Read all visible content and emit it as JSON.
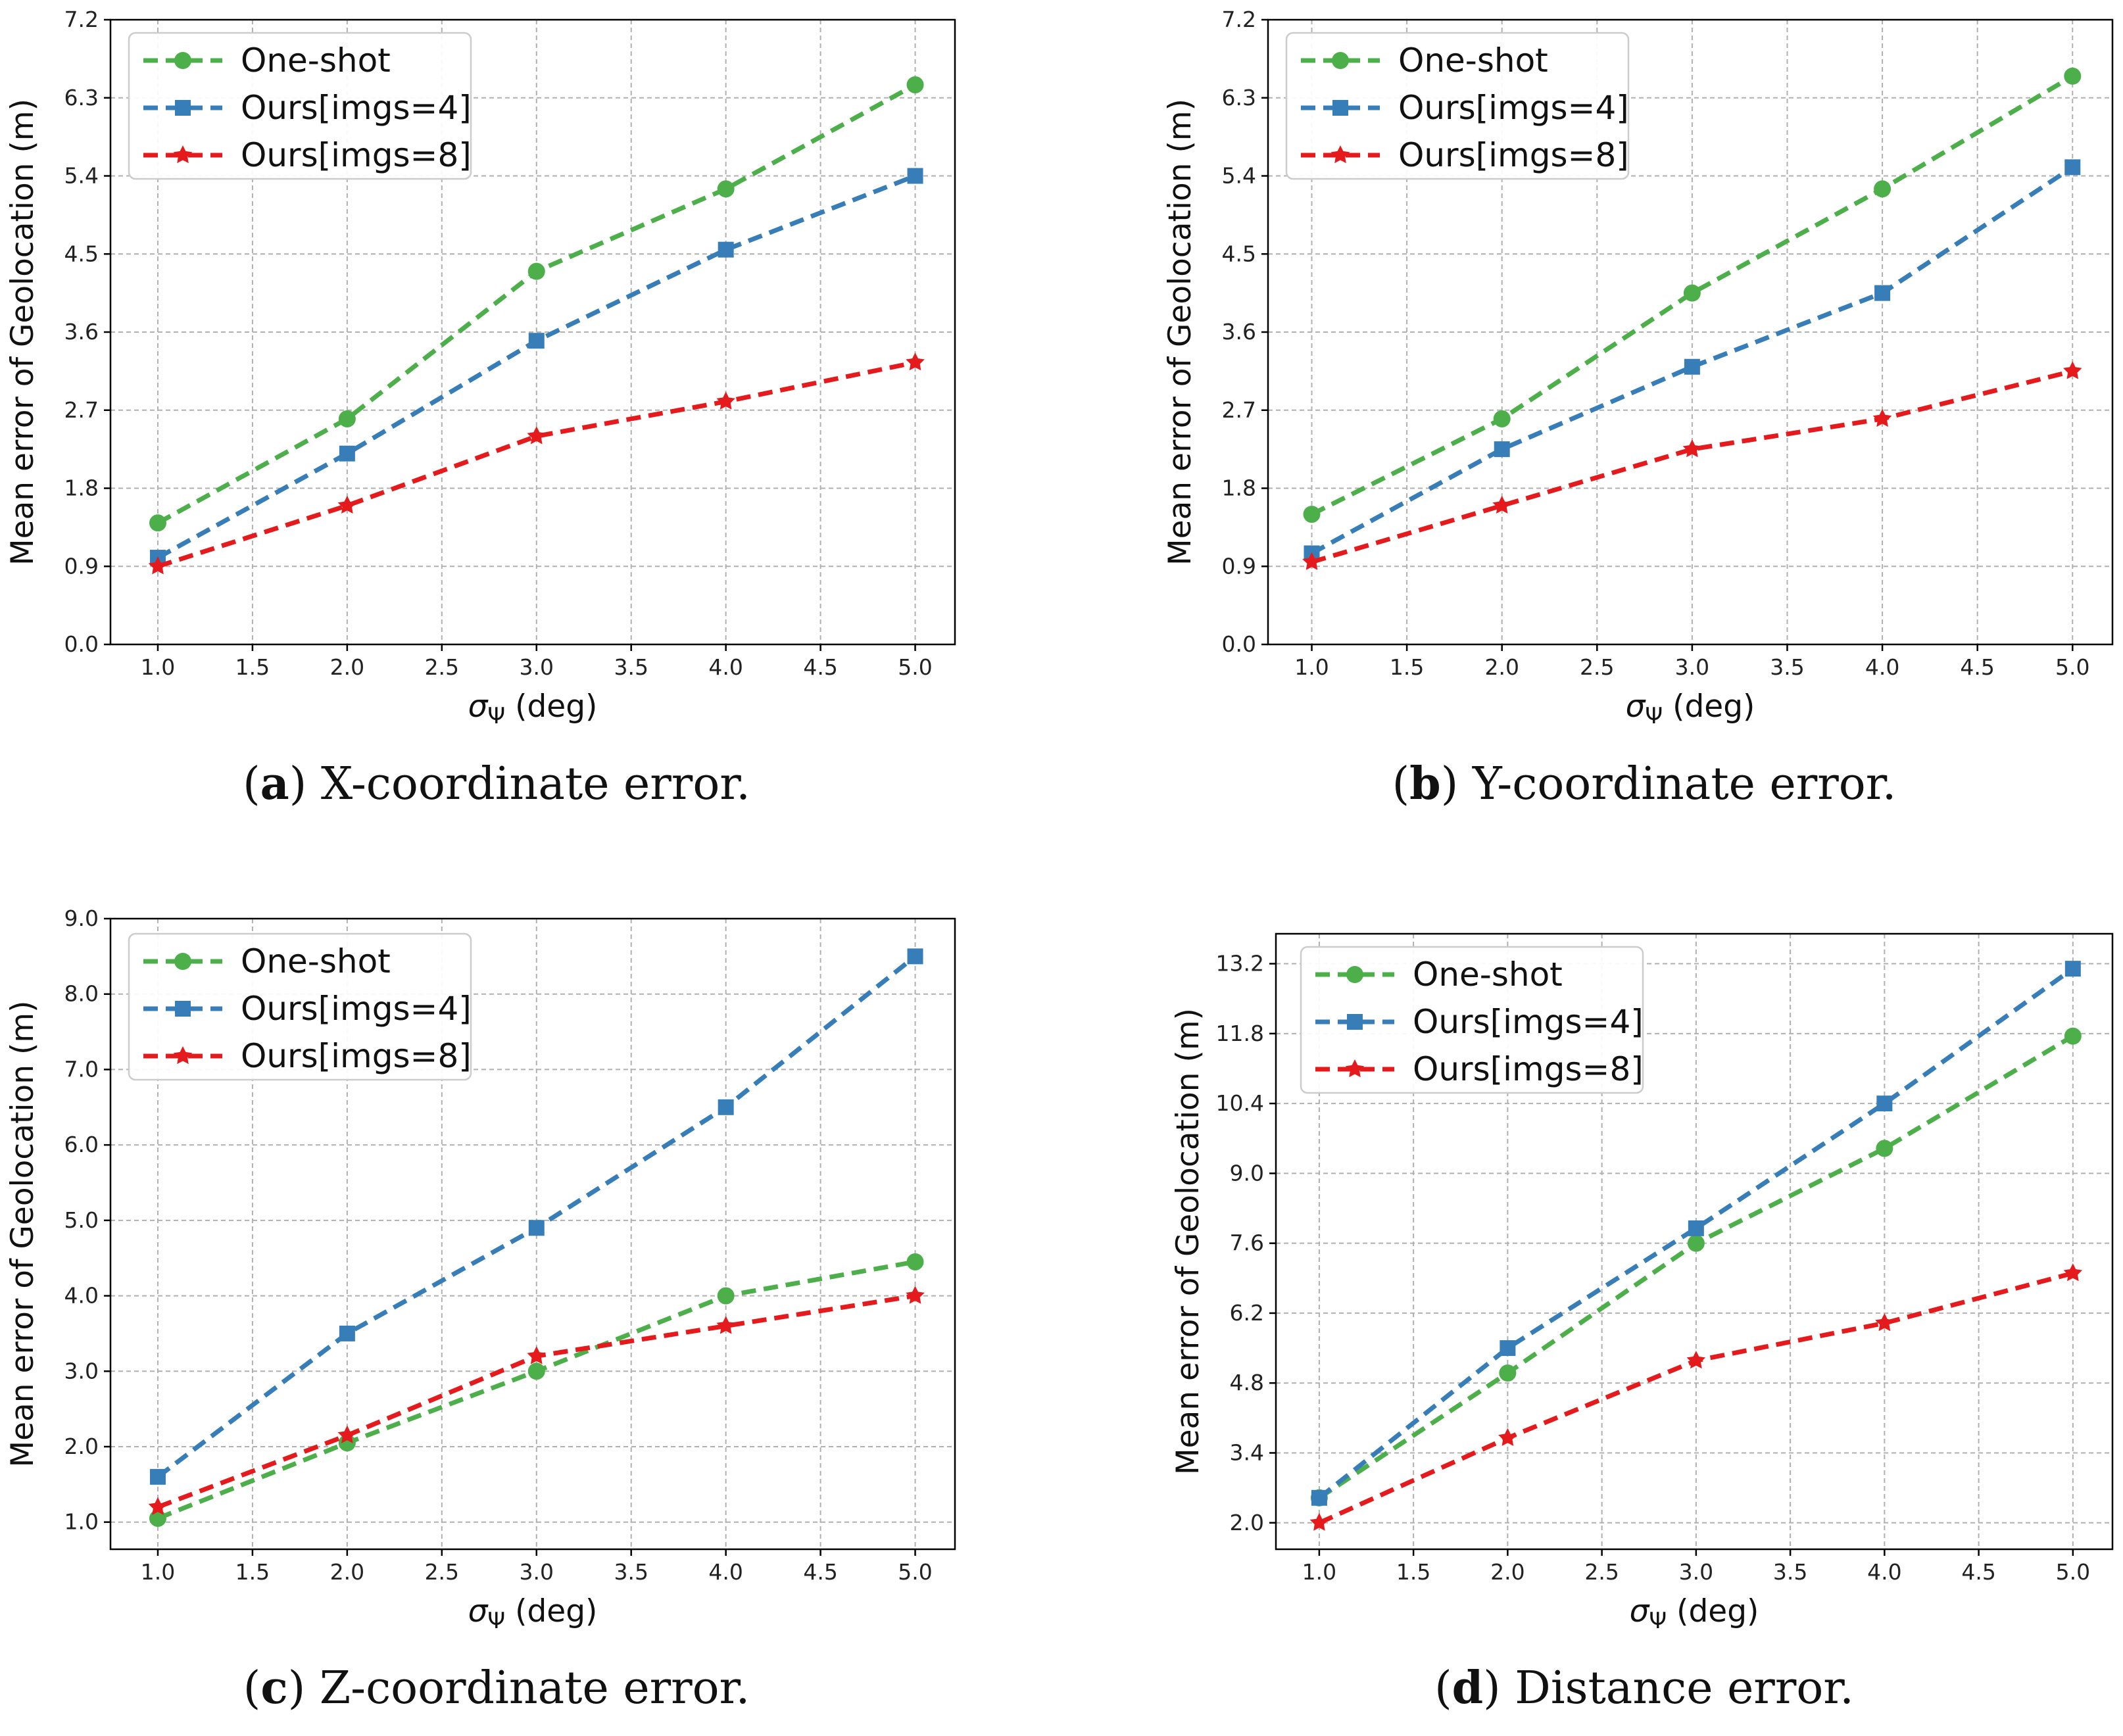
{
  "figure": {
    "series_styles": [
      {
        "name": "One-shot",
        "color": "#4daf4a",
        "marker": "circle"
      },
      {
        "name": "Ours[imgs=4]",
        "color": "#377eb8",
        "marker": "square"
      },
      {
        "name": "Ours[imgs=8]",
        "color": "#e41a1c",
        "marker": "triangle"
      }
    ]
  },
  "chart_data": [
    {
      "id": "a",
      "type": "line",
      "caption_letter": "a",
      "caption_text": "X-coordinate error.",
      "xlabel_symbol": "σ",
      "xlabel_sub": "Ψ",
      "xlabel_unit": "(deg)",
      "ylabel": "Mean error of Geolocation (m)",
      "xlim": [
        0.75,
        5.21
      ],
      "ylim": [
        0,
        7.2
      ],
      "xticks": [
        "1.0",
        "1.5",
        "2.0",
        "2.5",
        "3.0",
        "3.5",
        "4.0",
        "4.5",
        "5.0"
      ],
      "yticks": [
        "0.0",
        "0.9",
        "1.8",
        "2.7",
        "3.6",
        "4.5",
        "5.4",
        "6.3",
        "7.2"
      ],
      "legend_position": "top-left",
      "x": [
        1,
        2,
        3,
        4,
        5
      ],
      "series": [
        {
          "name": "One-shot",
          "values": [
            1.4,
            2.6,
            4.3,
            5.25,
            6.45
          ]
        },
        {
          "name": "Ours[imgs=4]",
          "values": [
            1.0,
            2.2,
            3.5,
            4.55,
            5.4
          ]
        },
        {
          "name": "Ours[imgs=8]",
          "values": [
            0.9,
            1.6,
            2.4,
            2.8,
            3.25
          ]
        }
      ]
    },
    {
      "id": "b",
      "type": "line",
      "caption_letter": "b",
      "caption_text": "Y-coordinate error.",
      "xlabel_symbol": "σ",
      "xlabel_sub": "Ψ",
      "xlabel_unit": "(deg)",
      "ylabel": "Mean error of Geolocation (m)",
      "xlim": [
        0.77,
        5.21
      ],
      "ylim": [
        0,
        7.2
      ],
      "xticks": [
        "1.0",
        "1.5",
        "2.0",
        "2.5",
        "3.0",
        "3.5",
        "4.0",
        "4.5",
        "5.0"
      ],
      "yticks": [
        "0.0",
        "0.9",
        "1.8",
        "2.7",
        "3.6",
        "4.5",
        "5.4",
        "6.3",
        "7.2"
      ],
      "legend_position": "top-left",
      "x": [
        1,
        2,
        3,
        4,
        5
      ],
      "series": [
        {
          "name": "One-shot",
          "values": [
            1.5,
            2.6,
            4.05,
            5.25,
            6.55
          ]
        },
        {
          "name": "Ours[imgs=4]",
          "values": [
            1.05,
            2.25,
            3.2,
            4.05,
            5.5
          ]
        },
        {
          "name": "Ours[imgs=8]",
          "values": [
            0.95,
            1.6,
            2.25,
            2.6,
            3.15
          ]
        }
      ]
    },
    {
      "id": "c",
      "type": "line",
      "caption_letter": "c",
      "caption_text": "Z-coordinate error.",
      "xlabel_symbol": "σ",
      "xlabel_sub": "Ψ",
      "xlabel_unit": "(deg)",
      "ylabel": "Mean error of Geolocation (m)",
      "xlim": [
        0.75,
        5.21
      ],
      "ylim": [
        0.64,
        9.0
      ],
      "xticks": [
        "1.0",
        "1.5",
        "2.0",
        "2.5",
        "3.0",
        "3.5",
        "4.0",
        "4.5",
        "5.0"
      ],
      "yticks": [
        "1.0",
        "2.0",
        "3.0",
        "4.0",
        "5.0",
        "6.0",
        "7.0",
        "8.0",
        "9.0"
      ],
      "legend_position": "top-left",
      "x": [
        1,
        2,
        3,
        4,
        5
      ],
      "series": [
        {
          "name": "One-shot",
          "values": [
            1.05,
            2.05,
            3.0,
            4.0,
            4.45
          ]
        },
        {
          "name": "Ours[imgs=4]",
          "values": [
            1.6,
            3.5,
            4.9,
            6.5,
            8.5
          ]
        },
        {
          "name": "Ours[imgs=8]",
          "values": [
            1.2,
            2.15,
            3.2,
            3.6,
            4.0
          ]
        }
      ]
    },
    {
      "id": "d",
      "type": "line",
      "caption_letter": "d",
      "caption_text": "Distance error.",
      "xlabel_symbol": "σ",
      "xlabel_sub": "Ψ",
      "xlabel_unit": "(deg)",
      "ylabel": "Mean error of Geolocation (m)",
      "xlim": [
        0.77,
        5.21
      ],
      "ylim": [
        1.47,
        13.8
      ],
      "xticks": [
        "1.0",
        "1.5",
        "2.0",
        "2.5",
        "3.0",
        "3.5",
        "4.0",
        "4.5",
        "5.0"
      ],
      "yticks": [
        "2.0",
        "3.4",
        "4.8",
        "6.2",
        "7.6",
        "9.0",
        "10.4",
        "11.8",
        "13.2"
      ],
      "legend_position": "top-left",
      "x": [
        1,
        2,
        3,
        4,
        5
      ],
      "series": [
        {
          "name": "One-shot",
          "values": [
            2.5,
            5.0,
            7.6,
            9.5,
            11.75
          ]
        },
        {
          "name": "Ours[imgs=4]",
          "values": [
            2.5,
            5.5,
            7.9,
            10.4,
            13.1
          ]
        },
        {
          "name": "Ours[imgs=8]",
          "values": [
            2.0,
            3.7,
            5.25,
            6.0,
            7.0
          ]
        }
      ]
    }
  ]
}
